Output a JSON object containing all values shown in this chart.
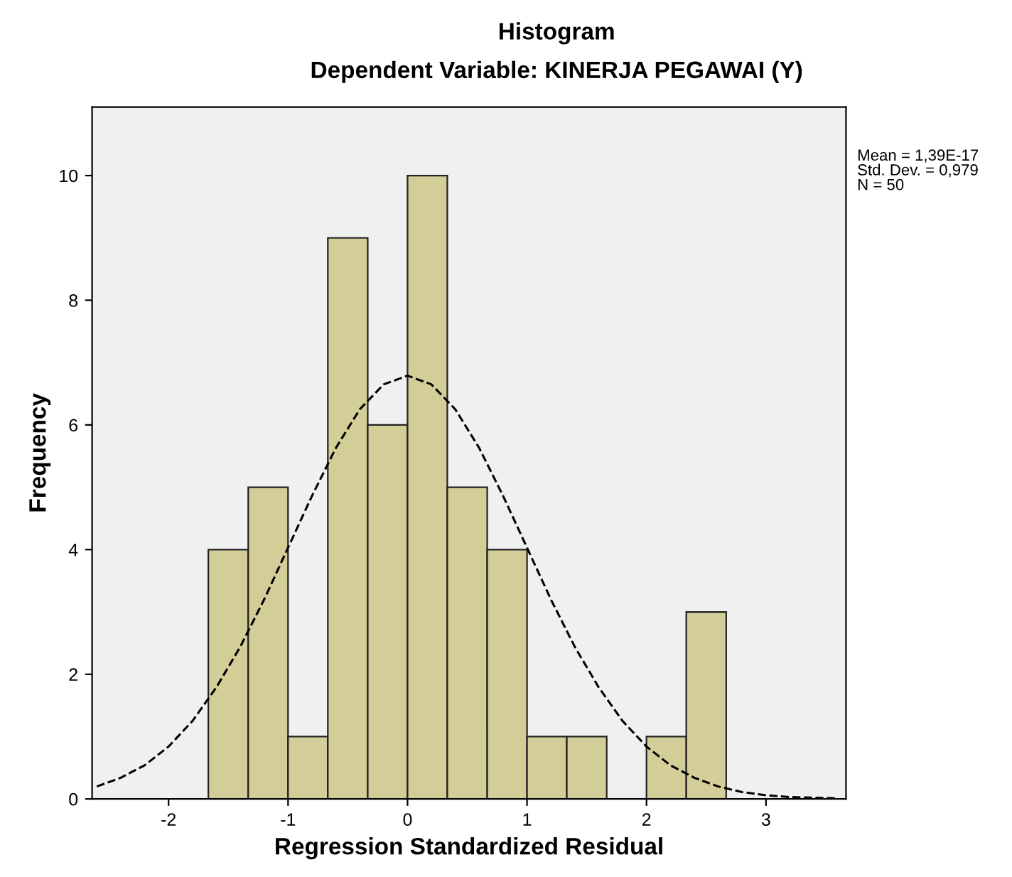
{
  "chart_data": {
    "type": "histogram",
    "title": "Histogram",
    "subtitle": "Dependent Variable: KINERJA PEGAWAI (Y)",
    "xlabel": "Regression Standardized Residual",
    "ylabel": "Frequency",
    "bins": [
      -1.667,
      -1.333,
      -1.0,
      -0.667,
      -0.333,
      0.0,
      0.333,
      0.667,
      1.0,
      1.333,
      1.667,
      2.0,
      2.333,
      2.667
    ],
    "values": [
      4,
      5,
      1,
      9,
      6,
      10,
      5,
      4,
      1,
      1,
      0,
      1,
      3
    ],
    "color": "#d3ce98",
    "series": [
      {
        "type": "line",
        "color": "#000000",
        "line_style": "dashed",
        "x": [
          -2.6,
          -2.4,
          -2.2,
          -2.0,
          -1.8,
          -1.6,
          -1.4,
          -1.2,
          -1.0,
          -0.8,
          -0.6,
          -0.4,
          -0.2,
          0.0,
          0.2,
          0.4,
          0.6,
          0.8,
          1.0,
          1.2,
          1.4,
          1.6,
          1.8,
          2.0,
          2.2,
          2.4,
          2.6,
          2.8,
          3.0,
          3.2,
          3.4,
          3.6
        ],
        "values": [
          0.2,
          0.34,
          0.54,
          0.84,
          1.25,
          1.79,
          2.44,
          3.2,
          4.03,
          4.86,
          5.63,
          6.25,
          6.65,
          6.79,
          6.65,
          6.25,
          5.63,
          4.86,
          4.03,
          3.2,
          2.44,
          1.79,
          1.25,
          0.84,
          0.54,
          0.34,
          0.2,
          0.11,
          0.06,
          0.03,
          0.02,
          0.01
        ]
      }
    ],
    "xlim": [
      -2.64,
      3.67
    ],
    "ylim": [
      0,
      11.1
    ],
    "xticks": [
      -2,
      -1,
      0,
      1,
      2,
      3
    ],
    "yticks": [
      0,
      2,
      4,
      6,
      8,
      10
    ],
    "grid": false,
    "annotations": [
      "Mean = 1,39E-17\nStd. Dev. = 0,979\nN = 50"
    ]
  }
}
